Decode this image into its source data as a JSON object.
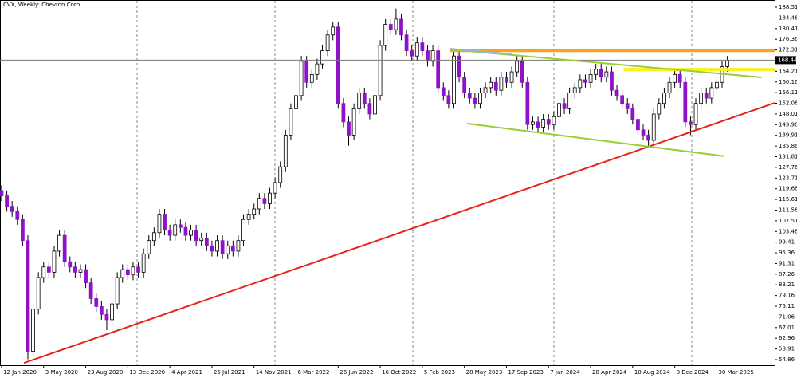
{
  "chart_data": {
    "type": "candlestick",
    "title": "CVX, Weekly:  Chevron Corp.",
    "x": [
      0,
      2,
      4,
      6,
      8,
      10,
      12,
      14,
      16,
      18,
      20,
      22,
      24,
      26,
      28,
      30,
      32,
      34,
      36,
      38,
      40,
      42,
      44,
      46,
      48,
      50,
      52,
      54,
      56,
      58,
      60,
      62,
      64,
      66,
      68,
      70,
      72,
      74,
      76,
      78,
      80,
      82,
      84,
      86,
      88,
      90,
      92,
      94,
      96,
      98,
      100,
      102,
      104,
      106,
      108,
      110,
      112,
      114,
      116,
      118,
      120,
      122,
      124,
      126,
      128,
      130,
      132,
      134,
      136,
      138,
      140,
      142,
      144,
      146,
      148,
      150,
      152,
      154,
      156,
      158,
      160,
      162,
      164,
      166,
      168,
      170,
      172,
      174,
      176,
      178,
      180,
      182,
      184,
      186,
      188,
      190,
      192,
      194,
      196,
      198,
      200,
      202,
      204,
      206,
      208,
      210,
      212,
      214,
      216,
      218,
      220,
      222,
      224,
      226,
      228,
      230,
      232,
      234,
      236,
      238,
      240,
      242,
      244,
      246,
      248,
      250,
      252,
      254,
      256,
      258,
      260,
      262,
      264,
      266,
      268,
      270,
      272,
      274,
      276
    ],
    "open": [
      119,
      117,
      113,
      111,
      108,
      100,
      58,
      74,
      86,
      90,
      88,
      96,
      102,
      92,
      90,
      88,
      89,
      84,
      78,
      75,
      72,
      70,
      76,
      86,
      89,
      87,
      90,
      88,
      95,
      100,
      103,
      110,
      104,
      102,
      106,
      105,
      102,
      104,
      100,
      101,
      98,
      96,
      100,
      95,
      98,
      96,
      100,
      108,
      110,
      112,
      116,
      114,
      118,
      122,
      128,
      140,
      150,
      155,
      168,
      160,
      163,
      167,
      172,
      178,
      181,
      152,
      145,
      140,
      150,
      156,
      152,
      148,
      155,
      174,
      182,
      180,
      184,
      178,
      172,
      170,
      175,
      172,
      168,
      172,
      158,
      155,
      152,
      170,
      162,
      156,
      154,
      152,
      156,
      158,
      160,
      157,
      162,
      160,
      164,
      168,
      160,
      144,
      145,
      143,
      146,
      144,
      147,
      152,
      150,
      156,
      158,
      161,
      160,
      163,
      165,
      162,
      164,
      157,
      155,
      152,
      150,
      146,
      142,
      140,
      138,
      148,
      152,
      156,
      160,
      163,
      160,
      145,
      144,
      152,
      156,
      154,
      158,
      160,
      166
    ],
    "high": [
      121,
      119,
      115,
      113,
      110,
      102,
      76,
      88,
      92,
      92,
      98,
      104,
      104,
      94,
      92,
      91,
      91,
      86,
      80,
      77,
      74,
      78,
      88,
      91,
      91,
      92,
      92,
      97,
      102,
      105,
      112,
      112,
      106,
      108,
      108,
      107,
      106,
      106,
      103,
      103,
      100,
      102,
      102,
      100,
      100,
      102,
      110,
      112,
      114,
      118,
      118,
      120,
      124,
      130,
      142,
      152,
      157,
      170,
      170,
      165,
      169,
      174,
      180,
      183,
      183,
      154,
      147,
      152,
      158,
      158,
      154,
      157,
      176,
      184,
      184,
      188,
      186,
      180,
      174,
      177,
      177,
      174,
      174,
      174,
      160,
      157,
      172,
      172,
      164,
      158,
      156,
      158,
      160,
      162,
      162,
      164,
      164,
      166,
      170,
      170,
      162,
      147,
      147,
      148,
      148,
      149,
      154,
      154,
      158,
      160,
      163,
      163,
      165,
      167,
      167,
      166,
      166,
      159,
      157,
      154,
      152,
      148,
      144,
      142,
      150,
      154,
      158,
      162,
      165,
      165,
      162,
      147,
      154,
      158,
      158,
      160,
      162,
      168,
      170
    ],
    "low": [
      115,
      111,
      109,
      106,
      98,
      55,
      56,
      72,
      84,
      86,
      86,
      94,
      90,
      88,
      86,
      86,
      82,
      76,
      73,
      70,
      66,
      68,
      74,
      84,
      85,
      85,
      86,
      86,
      93,
      98,
      101,
      102,
      100,
      100,
      103,
      100,
      100,
      98,
      98,
      96,
      94,
      94,
      93,
      93,
      94,
      94,
      98,
      106,
      108,
      110,
      112,
      112,
      116,
      120,
      126,
      138,
      148,
      153,
      158,
      158,
      161,
      165,
      170,
      176,
      150,
      143,
      136,
      138,
      148,
      150,
      146,
      146,
      153,
      172,
      178,
      178,
      176,
      170,
      168,
      168,
      170,
      166,
      166,
      156,
      153,
      150,
      150,
      160,
      154,
      152,
      150,
      150,
      154,
      156,
      155,
      155,
      158,
      158,
      162,
      158,
      142,
      142,
      141,
      141,
      142,
      142,
      145,
      148,
      148,
      154,
      156,
      158,
      158,
      161,
      160,
      160,
      155,
      153,
      150,
      148,
      144,
      140,
      138,
      136,
      136,
      146,
      150,
      154,
      158,
      158,
      143,
      140,
      142,
      150,
      152,
      152,
      156,
      158,
      164
    ],
    "close": [
      117,
      113,
      111,
      108,
      100,
      58,
      74,
      86,
      90,
      88,
      96,
      102,
      92,
      90,
      88,
      89,
      84,
      78,
      75,
      72,
      70,
      76,
      86,
      89,
      87,
      90,
      88,
      95,
      100,
      103,
      110,
      104,
      102,
      106,
      105,
      102,
      104,
      100,
      101,
      98,
      96,
      100,
      95,
      98,
      96,
      100,
      108,
      110,
      112,
      116,
      114,
      118,
      122,
      128,
      140,
      150,
      155,
      168,
      160,
      163,
      167,
      172,
      178,
      181,
      152,
      145,
      140,
      150,
      156,
      152,
      148,
      155,
      174,
      182,
      180,
      184,
      178,
      172,
      170,
      175,
      172,
      168,
      172,
      158,
      155,
      152,
      170,
      162,
      156,
      154,
      152,
      156,
      158,
      160,
      157,
      162,
      160,
      164,
      168,
      160,
      144,
      145,
      143,
      146,
      144,
      147,
      152,
      150,
      156,
      158,
      161,
      160,
      163,
      165,
      162,
      164,
      157,
      155,
      152,
      150,
      146,
      142,
      140,
      138,
      148,
      152,
      156,
      160,
      163,
      160,
      145,
      144,
      152,
      156,
      154,
      158,
      160,
      166,
      168.44
    ],
    "up_color": "#ffffff",
    "down_color": "#8e12c9",
    "last_price": 168.44,
    "xlim": [
      -0.6,
      294
    ],
    "xticks": [
      {
        "value": 0,
        "label": "12 Jan 2020"
      },
      {
        "value": 16,
        "label": "3 May 2020"
      },
      {
        "value": 32,
        "label": "23 Aug 2020"
      },
      {
        "value": 48,
        "label": "13 Dec 2020"
      },
      {
        "value": 64,
        "label": "4 Apr 2021"
      },
      {
        "value": 80,
        "label": "25 Jul 2021"
      },
      {
        "value": 96,
        "label": "14 Nov 2021"
      },
      {
        "value": 112,
        "label": "6 Mar 2022"
      },
      {
        "value": 128,
        "label": "26 Jun 2022"
      },
      {
        "value": 144,
        "label": "16 Oct 2022"
      },
      {
        "value": 160,
        "label": "5 Feb 2023"
      },
      {
        "value": 176,
        "label": "28 May 2023"
      },
      {
        "value": 192,
        "label": "17 Sep 2023"
      },
      {
        "value": 208,
        "label": "7 Jan 2024"
      },
      {
        "value": 224,
        "label": "28 Apr 2024"
      },
      {
        "value": 240,
        "label": "18 Aug 2024"
      },
      {
        "value": 256,
        "label": "8 Dec 2024"
      },
      {
        "value": 272,
        "label": "30 Mar 2025"
      }
    ],
    "ylim": [
      52.74,
      191.23
    ],
    "yticks": [
      188.51,
      184.46,
      180.41,
      176.36,
      172.31,
      164.21,
      160.16,
      156.11,
      152.06,
      148.01,
      143.96,
      139.91,
      135.86,
      131.81,
      127.76,
      123.71,
      119.66,
      115.61,
      111.56,
      107.51,
      103.46,
      99.41,
      95.36,
      91.31,
      87.26,
      83.21,
      79.16,
      75.11,
      71.06,
      67.01,
      62.96,
      58.91,
      54.86
    ],
    "trendlines": [
      {
        "color": "#e8221c",
        "width": 2,
        "x": [
          8.5,
          294
        ],
        "y": [
          53.6,
          152.2
        ]
      },
      {
        "color": "#f7a21b",
        "width": 4,
        "x": [
          170.5,
          294
        ],
        "y": [
          172.1,
          172.1
        ]
      },
      {
        "color": "#f9f21c",
        "width": 4,
        "x": [
          236.5,
          294
        ],
        "y": [
          164.9,
          164.9
        ]
      },
      {
        "color": "#9acd32",
        "width": 2,
        "x": [
          170.5,
          289
        ],
        "y": [
          172.5,
          161.9
        ]
      },
      {
        "color": "#9acd32",
        "width": 2,
        "x": [
          177,
          275
        ],
        "y": [
          144.4,
          132.0
        ]
      },
      {
        "color": "#8fb8e0",
        "width": 2,
        "x": [
          170.5,
          194
        ],
        "y": [
          172.8,
          170.7
        ]
      }
    ]
  }
}
